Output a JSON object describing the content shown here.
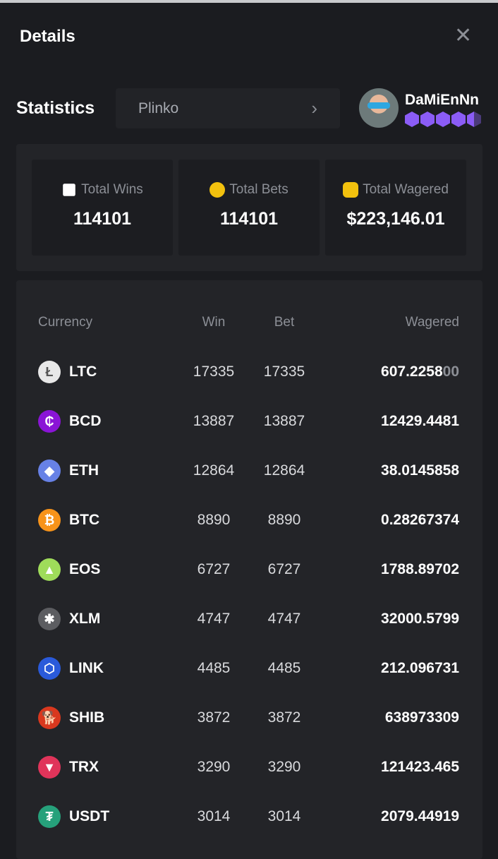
{
  "header": {
    "title": "Details",
    "close_icon": "close-icon"
  },
  "statistics": {
    "label": "Statistics",
    "game_select": "Plinko"
  },
  "user": {
    "name": "DaMiEnNn",
    "level_badges": 4.5
  },
  "summary": [
    {
      "label": "Total Wins",
      "value": "114101",
      "icon": "ticket-icon",
      "color": "#ffffff"
    },
    {
      "label": "Total Bets",
      "value": "114101",
      "icon": "coin-icon",
      "color": "#f2c10e"
    },
    {
      "label": "Total Wagered",
      "value": "$223,146.01",
      "icon": "coin-stack-icon",
      "color": "#f2c10e"
    }
  ],
  "table": {
    "columns": [
      "Currency",
      "Win",
      "Bet",
      "Wagered"
    ],
    "rows": [
      {
        "currency": "LTC",
        "win": "17335",
        "bet": "17335",
        "wagered": "607.2258",
        "wagered_dim": "00",
        "color": "#e8e8e8",
        "glyph": "Ł"
      },
      {
        "currency": "BCD",
        "win": "13887",
        "bet": "13887",
        "wagered": "12429.4481",
        "color": "#8a14d6",
        "glyph": "₵"
      },
      {
        "currency": "ETH",
        "win": "12864",
        "bet": "12864",
        "wagered": "38.0145858",
        "color": "#6781e6",
        "glyph": "◆"
      },
      {
        "currency": "BTC",
        "win": "8890",
        "bet": "8890",
        "wagered": "0.28267374",
        "color": "#f7931a",
        "glyph": "₿"
      },
      {
        "currency": "EOS",
        "win": "6727",
        "bet": "6727",
        "wagered": "1788.89702",
        "color": "#9fdc5a",
        "glyph": "▲"
      },
      {
        "currency": "XLM",
        "win": "4747",
        "bet": "4747",
        "wagered": "32000.5799",
        "color": "#5c5d61",
        "glyph": "✱"
      },
      {
        "currency": "LINK",
        "win": "4485",
        "bet": "4485",
        "wagered": "212.096731",
        "color": "#2a5ada",
        "glyph": "⬡"
      },
      {
        "currency": "SHIB",
        "win": "3872",
        "bet": "3872",
        "wagered": "638973309",
        "color": "#d9381e",
        "glyph": "🐕"
      },
      {
        "currency": "TRX",
        "win": "3290",
        "bet": "3290",
        "wagered": "121423.465",
        "color": "#e0345a",
        "glyph": "▼"
      },
      {
        "currency": "USDT",
        "win": "3014",
        "bet": "3014",
        "wagered": "2079.44919",
        "color": "#26a17b",
        "glyph": "₮"
      }
    ]
  }
}
